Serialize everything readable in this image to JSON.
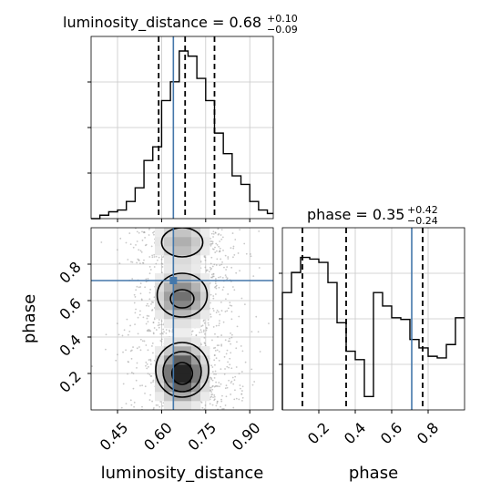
{
  "chart_data": {
    "type": "corner",
    "parameters": [
      "luminosity_distance",
      "phase"
    ],
    "truth": {
      "luminosity_distance": 0.64,
      "phase": 0.71
    },
    "panels": [
      {
        "id": "luminosity_distance_1d",
        "type": "histogram",
        "title": {
          "label": "luminosity_distance",
          "median": "0.68",
          "plus": "+0.10",
          "minus": "−0.09"
        },
        "xlim": [
          0.36,
          0.98
        ],
        "quantiles": [
          0.59,
          0.68,
          0.78
        ],
        "bin_edges": [
          0.36,
          0.39,
          0.42,
          0.45,
          0.48,
          0.51,
          0.54,
          0.57,
          0.6,
          0.63,
          0.66,
          0.69,
          0.72,
          0.75,
          0.78,
          0.81,
          0.84,
          0.87,
          0.9,
          0.93,
          0.96,
          0.98
        ],
        "counts": [
          0,
          2,
          4,
          5,
          10,
          18,
          34,
          42,
          69,
          80,
          98,
          95,
          82,
          69,
          50,
          38,
          25,
          20,
          10,
          5,
          3
        ],
        "y_tick_labels_shown": false
      },
      {
        "id": "phase_1d",
        "type": "histogram",
        "title": {
          "label": "phase",
          "median": "0.35",
          "plus": "+0.42",
          "minus": "−0.24"
        },
        "xlim": [
          0.0,
          1.0
        ],
        "quantiles": [
          0.11,
          0.35,
          0.77
        ],
        "bin_edges": [
          0.0,
          0.05,
          0.1,
          0.15,
          0.2,
          0.25,
          0.3,
          0.35,
          0.4,
          0.45,
          0.5,
          0.55,
          0.6,
          0.65,
          0.7,
          0.75,
          0.8,
          0.85,
          0.9,
          0.95,
          1.0
        ],
        "counts": [
          0.7,
          0.82,
          0.91,
          0.9,
          0.88,
          0.76,
          0.52,
          0.35,
          0.3,
          0.08,
          0.7,
          0.62,
          0.55,
          0.54,
          0.42,
          0.37,
          0.32,
          0.31,
          0.39,
          0.55
        ],
        "xticks": [
          0.2,
          0.4,
          0.6,
          0.8
        ],
        "xtick_labels": [
          "0.2",
          "0.4",
          "0.6",
          "0.8"
        ],
        "xlabel": "phase",
        "y_tick_labels_shown": false
      },
      {
        "id": "joint_2d",
        "type": "2d-density",
        "x": "luminosity_distance",
        "y": "phase",
        "xlim": [
          0.36,
          0.98
        ],
        "ylim": [
          0.0,
          1.0
        ],
        "density_peaks": [
          {
            "x": 0.67,
            "y": 0.2,
            "level": "highest"
          },
          {
            "x": 0.67,
            "y": 0.62,
            "level": "secondary"
          },
          {
            "x": 0.67,
            "y": 0.9,
            "level": "minor"
          }
        ],
        "xticks": [
          0.45,
          0.6,
          0.75,
          0.9
        ],
        "xtick_labels": [
          "0.45",
          "0.60",
          "0.75",
          "0.90"
        ],
        "yticks": [
          0.2,
          0.4,
          0.6,
          0.8
        ],
        "ytick_labels": [
          "0.2",
          "0.4",
          "0.6",
          "0.8"
        ],
        "xlabel": "luminosity_distance",
        "ylabel": "phase"
      }
    ],
    "grid": true,
    "colors": {
      "truth": "#4477aa",
      "quantile": "#000000",
      "grid": "#c8c8c8",
      "scatter": "#9a9a9a",
      "histogram": "#000000"
    }
  }
}
